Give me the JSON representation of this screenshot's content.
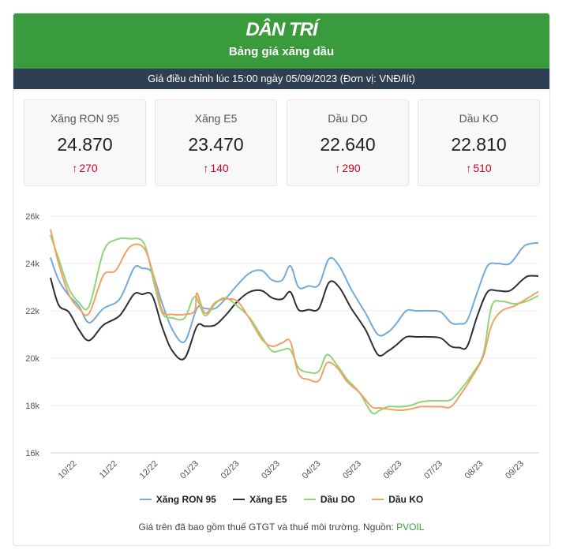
{
  "header": {
    "logo": "DÂN TRÍ",
    "title": "Bảng giá xăng dầu"
  },
  "subheader": "Giá điều chỉnh lúc 15:00 ngày 05/09/2023 (Đơn vị: VNĐ/lít)",
  "stats": [
    {
      "name": "Xăng RON 95",
      "price": "24.870",
      "change": "270",
      "direction": "up"
    },
    {
      "name": "Xăng E5",
      "price": "23.470",
      "change": "140",
      "direction": "up"
    },
    {
      "name": "Dầu DO",
      "price": "22.640",
      "change": "290",
      "direction": "up"
    },
    {
      "name": "Dầu KO",
      "price": "22.810",
      "change": "510",
      "direction": "up"
    }
  ],
  "footer": {
    "note": "Giá trên đã bao gồm thuế GTGT và thuế môi trường. Nguồn:",
    "source": "PVOIL"
  },
  "colors": {
    "ron95": "#74a9dd",
    "e5": "#2d2f33",
    "do": "#8fd675",
    "ko": "#f0a266",
    "header": "#3a9b3c",
    "bar": "#2f3f53",
    "up": "#d0021b"
  },
  "chart_data": {
    "type": "line",
    "ylim": [
      16000,
      26000
    ],
    "yticks": [
      16000,
      18000,
      20000,
      22000,
      24000,
      26000
    ],
    "ytick_labels": [
      "16k",
      "18k",
      "20k",
      "22k",
      "24k",
      "26k"
    ],
    "xlim": [
      0,
      12
    ],
    "xticks": [
      0.65,
      1.65,
      2.65,
      3.65,
      4.65,
      5.65,
      6.65,
      7.65,
      8.65,
      9.65,
      10.65,
      11.65
    ],
    "xtick_labels": [
      "10/22",
      "11/22",
      "12/22",
      "01/23",
      "02/23",
      "03/23",
      "04/23",
      "05/23",
      "06/23",
      "07/23",
      "08/23",
      "09/23"
    ],
    "grid": true,
    "legend_position": "bottom",
    "series": [
      {
        "name": "Xăng RON 95",
        "color": "#74a9dd",
        "x": [
          0,
          0.2,
          0.45,
          0.7,
          0.95,
          1.3,
          1.7,
          2.05,
          2.25,
          2.5,
          2.75,
          3.0,
          3.3,
          3.6,
          3.8,
          4.05,
          4.3,
          4.6,
          4.9,
          5.2,
          5.45,
          5.7,
          5.9,
          6.1,
          6.35,
          6.6,
          6.85,
          7.1,
          7.4,
          7.75,
          8.05,
          8.3,
          8.5,
          8.75,
          9.0,
          9.3,
          9.6,
          9.85,
          10.05,
          10.25,
          10.5,
          10.75,
          11.0,
          11.3,
          11.6,
          11.75,
          12.0
        ],
        "values": [
          24250,
          23300,
          22650,
          22200,
          21500,
          22100,
          22500,
          23800,
          23800,
          23600,
          22300,
          21200,
          20700,
          22100,
          22100,
          22100,
          22500,
          23100,
          23600,
          23700,
          23300,
          23300,
          23900,
          23000,
          23050,
          23100,
          24200,
          23900,
          22900,
          21900,
          21000,
          21100,
          21450,
          22000,
          22000,
          22000,
          21950,
          21500,
          21450,
          21600,
          22800,
          23900,
          24000,
          24000,
          24650,
          24820,
          24870
        ]
      },
      {
        "name": "Xăng E5",
        "color": "#2d2f33",
        "x": [
          0,
          0.2,
          0.45,
          0.7,
          0.95,
          1.3,
          1.7,
          2.05,
          2.25,
          2.5,
          2.75,
          3.0,
          3.3,
          3.6,
          3.8,
          4.05,
          4.3,
          4.6,
          4.9,
          5.2,
          5.45,
          5.7,
          5.9,
          6.1,
          6.35,
          6.6,
          6.85,
          7.1,
          7.4,
          7.75,
          8.05,
          8.3,
          8.5,
          8.75,
          9.0,
          9.3,
          9.6,
          9.85,
          10.05,
          10.25,
          10.5,
          10.75,
          11.0,
          11.3,
          11.6,
          11.75,
          12.0
        ],
        "values": [
          23400,
          22250,
          21950,
          21200,
          20750,
          21400,
          21800,
          22700,
          22700,
          22650,
          21300,
          20300,
          20000,
          21350,
          21350,
          21400,
          21800,
          22400,
          22800,
          22850,
          22550,
          22500,
          22800,
          22050,
          22050,
          22100,
          23200,
          23000,
          22100,
          21200,
          20150,
          20300,
          20550,
          20900,
          20900,
          20900,
          20850,
          20500,
          20450,
          20500,
          21800,
          22800,
          22850,
          22850,
          23300,
          23470,
          23470
        ]
      },
      {
        "name": "Dầu DO",
        "color": "#8fd675",
        "x": [
          0,
          0.2,
          0.45,
          0.7,
          0.95,
          1.3,
          1.6,
          1.95,
          2.3,
          2.55,
          2.75,
          3.0,
          3.3,
          3.55,
          3.8,
          4.05,
          4.3,
          4.6,
          4.9,
          5.2,
          5.45,
          5.7,
          5.9,
          6.1,
          6.35,
          6.6,
          6.8,
          7.05,
          7.3,
          7.6,
          7.9,
          8.1,
          8.3,
          8.6,
          8.85,
          9.1,
          9.35,
          9.6,
          9.85,
          10.1,
          10.4,
          10.65,
          10.85,
          11.1,
          11.4,
          11.7,
          12.0
        ],
        "values": [
          25200,
          24200,
          22950,
          22350,
          22200,
          24500,
          25000,
          25050,
          24850,
          23150,
          21900,
          21700,
          21700,
          22600,
          21800,
          22300,
          22550,
          22200,
          21700,
          20900,
          20300,
          20350,
          20350,
          19600,
          19400,
          19450,
          20150,
          19700,
          19100,
          18550,
          17700,
          17800,
          17950,
          17950,
          18000,
          18150,
          18200,
          18200,
          18250,
          18700,
          19400,
          20200,
          22200,
          22400,
          22300,
          22400,
          22640
        ]
      },
      {
        "name": "Dầu KO",
        "color": "#f0a266",
        "x": [
          0,
          0.2,
          0.45,
          0.7,
          0.95,
          1.3,
          1.6,
          1.95,
          2.3,
          2.55,
          2.75,
          3.0,
          3.3,
          3.55,
          3.6,
          3.8,
          4.05,
          4.3,
          4.6,
          4.9,
          5.2,
          5.45,
          5.7,
          5.9,
          6.1,
          6.35,
          6.6,
          6.8,
          7.05,
          7.3,
          7.6,
          7.9,
          8.1,
          8.3,
          8.6,
          8.85,
          9.1,
          9.35,
          9.6,
          9.85,
          10.1,
          10.4,
          10.65,
          10.85,
          11.1,
          11.4,
          11.7,
          12.0
        ],
        "values": [
          25450,
          24000,
          22700,
          22100,
          21900,
          23500,
          23700,
          24700,
          24650,
          23400,
          22000,
          21850,
          21850,
          22000,
          22750,
          21900,
          22350,
          22500,
          22400,
          21650,
          20800,
          20500,
          20650,
          20700,
          19350,
          19100,
          19050,
          19800,
          19600,
          19000,
          18550,
          17950,
          17900,
          17850,
          17800,
          17850,
          17950,
          17950,
          17950,
          17950,
          18500,
          19300,
          20100,
          21400,
          22000,
          22200,
          22500,
          22810
        ]
      }
    ]
  }
}
